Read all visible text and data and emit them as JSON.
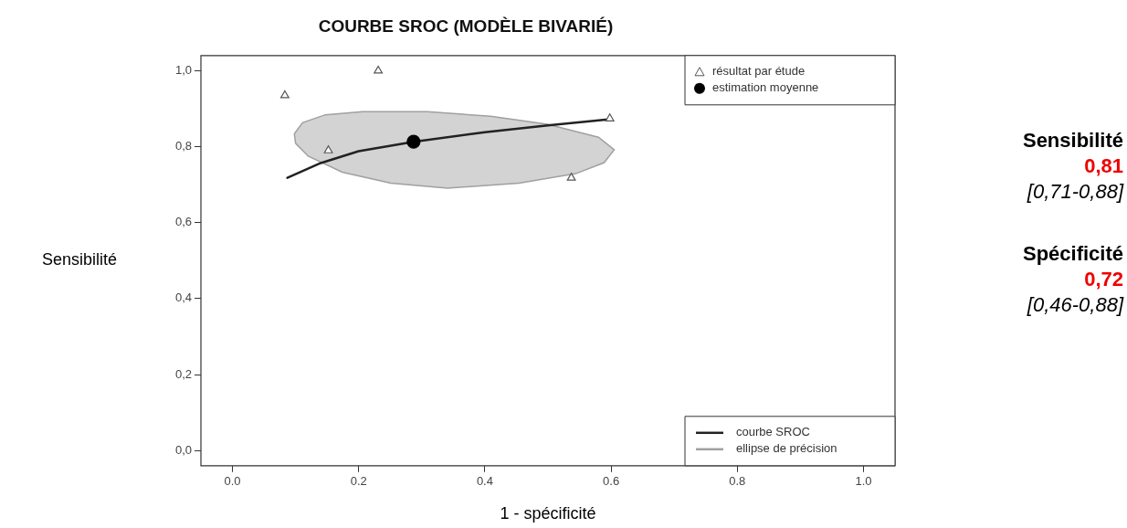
{
  "chart_data": {
    "type": "scatter",
    "title": "COURBE SROC (MODÈLE BIVARIÉ)",
    "xlabel": "1 - spécificité",
    "ylabel": "Sensibilité",
    "xlim": [
      -0.05,
      1.05
    ],
    "ylim": [
      -0.04,
      1.04
    ],
    "xticks": [
      {
        "value": 0,
        "label": "0.0"
      },
      {
        "value": 0.2,
        "label": "0.2"
      },
      {
        "value": 0.4,
        "label": "0.4"
      },
      {
        "value": 0.6,
        "label": "0.6"
      },
      {
        "value": 0.8,
        "label": "0.8"
      },
      {
        "value": 1,
        "label": "1.0"
      }
    ],
    "yticks": [
      {
        "value": 0,
        "label": "0,0"
      },
      {
        "value": 0.2,
        "label": "0,2"
      },
      {
        "value": 0.4,
        "label": "0,4"
      },
      {
        "value": 0.6,
        "label": "0,6"
      },
      {
        "value": 0.8,
        "label": "0,8"
      },
      {
        "value": 1,
        "label": "1,0"
      }
    ],
    "grid": false,
    "legend": "right",
    "series": [
      {
        "name": "courbe SROC",
        "type": "line",
        "color": "#222222",
        "marker": "none",
        "x": [
          0.087,
          0.14,
          0.2,
          0.287,
          0.4,
          0.5,
          0.595
        ],
        "values": [
          0.718,
          0.757,
          0.788,
          0.813,
          0.838,
          0.856,
          0.872
        ]
      },
      {
        "name": "ellipse de précision",
        "type": "area",
        "color": "#a0a0a0",
        "x": [
          0.098,
          0.111,
          0.147,
          0.206,
          0.309,
          0.409,
          0.499,
          0.58,
          0.605,
          0.589,
          0.544,
          0.454,
          0.341,
          0.251,
          0.174,
          0.12,
          0.1,
          0.098
        ],
        "values": [
          0.834,
          0.863,
          0.884,
          0.892,
          0.892,
          0.88,
          0.859,
          0.825,
          0.792,
          0.758,
          0.729,
          0.704,
          0.691,
          0.704,
          0.733,
          0.775,
          0.809,
          0.834
        ]
      },
      {
        "name": "résultat par étude",
        "color": "#555555",
        "marker": "triangle",
        "x": [
          0.083,
          0.231,
          0.152,
          0.537,
          0.598
        ],
        "values": [
          0.935,
          1.0,
          0.79,
          0.718,
          0.874
        ]
      },
      {
        "name": "estimation moyenne",
        "color": "#000000",
        "marker": "circle",
        "x": [
          0.287
        ],
        "values": [
          0.813
        ]
      }
    ],
    "annotations": [
      "Sensibilité",
      "0,81",
      "[0,71-0,88]",
      "Spécificité",
      "0,72",
      "[0,46-0,88]"
    ]
  }
}
